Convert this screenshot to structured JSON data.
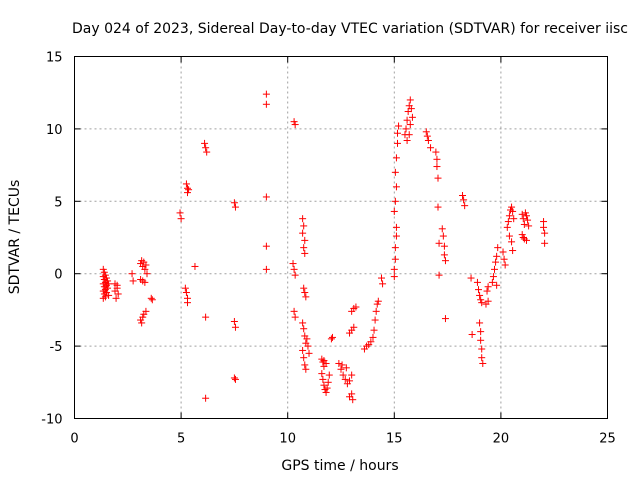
{
  "chart_data": {
    "type": "scatter",
    "title": "Day 024 of 2023, Sidereal Day-to-day VTEC variation (SDTVAR) for receiver iisc",
    "xlabel": "GPS time / hours",
    "ylabel": "SDTVAR / TECUs",
    "xlim": [
      0,
      25
    ],
    "ylim": [
      -10,
      15
    ],
    "xticks": [
      "0",
      "5",
      "10",
      "15",
      "20",
      "25"
    ],
    "yticks": [
      "-10",
      "-5",
      "0",
      "5",
      "10",
      "15"
    ],
    "grid": true,
    "marker": "plus",
    "color": "#ff0000",
    "series": [
      {
        "name": "SDTVAR",
        "points": [
          [
            1.35,
            0.3
          ],
          [
            1.35,
            -0.2
          ],
          [
            1.35,
            -0.7
          ],
          [
            1.35,
            -1.2
          ],
          [
            1.35,
            -1.7
          ],
          [
            1.4,
            0.1
          ],
          [
            1.4,
            -0.4
          ],
          [
            1.4,
            -0.9
          ],
          [
            1.4,
            -1.4
          ],
          [
            1.45,
            -0.1
          ],
          [
            1.45,
            -0.6
          ],
          [
            1.45,
            -1.1
          ],
          [
            1.45,
            -1.6
          ],
          [
            1.5,
            -0.3
          ],
          [
            1.5,
            -0.8
          ],
          [
            1.5,
            -1.3
          ],
          [
            1.55,
            -0.5
          ],
          [
            1.55,
            -1.0
          ],
          [
            1.6,
            -0.7
          ],
          [
            1.6,
            -1.5
          ],
          [
            1.9,
            -0.7
          ],
          [
            1.9,
            -1.2
          ],
          [
            1.95,
            -1.7
          ],
          [
            2.0,
            -1.0
          ],
          [
            2.0,
            -0.8
          ],
          [
            2.05,
            -1.4
          ],
          [
            2.7,
            0.0
          ],
          [
            2.75,
            -0.5
          ],
          [
            3.1,
            0.7
          ],
          [
            3.15,
            0.9
          ],
          [
            3.2,
            0.5
          ],
          [
            3.25,
            0.8
          ],
          [
            3.3,
            0.3
          ],
          [
            3.35,
            0.6
          ],
          [
            3.4,
            0.0
          ],
          [
            3.1,
            -0.4
          ],
          [
            3.2,
            -0.5
          ],
          [
            3.3,
            -0.6
          ],
          [
            3.1,
            -3.2
          ],
          [
            3.15,
            -3.4
          ],
          [
            3.2,
            -3.0
          ],
          [
            3.25,
            -2.8
          ],
          [
            3.35,
            -2.6
          ],
          [
            3.6,
            -1.7
          ],
          [
            3.65,
            -1.8
          ],
          [
            4.95,
            4.2
          ],
          [
            5.0,
            3.8
          ],
          [
            5.25,
            6.2
          ],
          [
            5.3,
            5.9
          ],
          [
            5.3,
            5.6
          ],
          [
            5.35,
            5.8
          ],
          [
            5.2,
            -1.0
          ],
          [
            5.25,
            -1.3
          ],
          [
            5.3,
            -1.7
          ],
          [
            5.3,
            -2.0
          ],
          [
            5.65,
            0.5
          ],
          [
            6.1,
            9.0
          ],
          [
            6.15,
            8.7
          ],
          [
            6.2,
            8.4
          ],
          [
            6.15,
            -3.0
          ],
          [
            6.15,
            -8.6
          ],
          [
            7.5,
            4.9
          ],
          [
            7.55,
            4.6
          ],
          [
            7.5,
            -3.3
          ],
          [
            7.55,
            -3.7
          ],
          [
            7.5,
            -7.2
          ],
          [
            7.55,
            -7.3
          ],
          [
            9.0,
            12.4
          ],
          [
            9.0,
            11.7
          ],
          [
            9.0,
            5.3
          ],
          [
            9.0,
            1.9
          ],
          [
            9.0,
            0.3
          ],
          [
            10.3,
            10.5
          ],
          [
            10.35,
            10.3
          ],
          [
            10.25,
            0.7
          ],
          [
            10.3,
            0.3
          ],
          [
            10.35,
            -0.1
          ],
          [
            10.3,
            -2.6
          ],
          [
            10.35,
            -3.0
          ],
          [
            10.7,
            3.8
          ],
          [
            10.75,
            3.3
          ],
          [
            10.7,
            2.8
          ],
          [
            10.8,
            2.3
          ],
          [
            10.75,
            1.8
          ],
          [
            10.8,
            1.4
          ],
          [
            10.75,
            -1.0
          ],
          [
            10.8,
            -1.3
          ],
          [
            10.85,
            -1.6
          ],
          [
            10.7,
            -3.4
          ],
          [
            10.75,
            -3.8
          ],
          [
            10.8,
            -4.3
          ],
          [
            10.85,
            -4.8
          ],
          [
            10.7,
            -5.3
          ],
          [
            10.75,
            -5.8
          ],
          [
            10.8,
            -6.3
          ],
          [
            10.85,
            -6.6
          ],
          [
            10.9,
            -4.5
          ],
          [
            10.95,
            -5.0
          ],
          [
            11.0,
            -5.5
          ],
          [
            11.6,
            -5.9
          ],
          [
            11.65,
            -6.1
          ],
          [
            11.7,
            -6.4
          ],
          [
            11.6,
            -6.9
          ],
          [
            11.65,
            -7.3
          ],
          [
            11.7,
            -7.7
          ],
          [
            11.75,
            -8.0
          ],
          [
            11.8,
            -8.2
          ],
          [
            11.85,
            -7.9
          ],
          [
            11.9,
            -7.5
          ],
          [
            11.95,
            -7.0
          ],
          [
            11.7,
            -6.0
          ],
          [
            11.8,
            -6.2
          ],
          [
            12.05,
            -4.5
          ],
          [
            12.1,
            -4.4
          ],
          [
            12.4,
            -6.2
          ],
          [
            12.5,
            -6.6
          ],
          [
            12.6,
            -7.0
          ],
          [
            12.7,
            -7.3
          ],
          [
            12.8,
            -7.6
          ],
          [
            12.9,
            -7.4
          ],
          [
            13.0,
            -7.0
          ],
          [
            12.55,
            -6.3
          ],
          [
            12.75,
            -6.5
          ],
          [
            12.9,
            -8.5
          ],
          [
            13.0,
            -8.3
          ],
          [
            13.05,
            -8.7
          ],
          [
            12.9,
            -4.1
          ],
          [
            13.0,
            -3.9
          ],
          [
            13.1,
            -3.7
          ],
          [
            13.0,
            -2.6
          ],
          [
            13.1,
            -2.4
          ],
          [
            13.2,
            -2.3
          ],
          [
            13.6,
            -5.2
          ],
          [
            13.7,
            -5.0
          ],
          [
            13.8,
            -4.9
          ],
          [
            13.9,
            -4.7
          ],
          [
            14.0,
            -4.4
          ],
          [
            14.05,
            -3.9
          ],
          [
            14.1,
            -3.2
          ],
          [
            14.15,
            -2.6
          ],
          [
            14.2,
            -2.1
          ],
          [
            14.25,
            -1.9
          ],
          [
            14.4,
            -0.3
          ],
          [
            14.45,
            -0.7
          ],
          [
            15.0,
            -0.2
          ],
          [
            15.0,
            0.3
          ],
          [
            15.05,
            1.0
          ],
          [
            15.05,
            1.8
          ],
          [
            15.1,
            2.6
          ],
          [
            15.1,
            3.2
          ],
          [
            15.0,
            4.3
          ],
          [
            15.05,
            5.0
          ],
          [
            15.1,
            6.0
          ],
          [
            15.05,
            7.0
          ],
          [
            15.1,
            8.0
          ],
          [
            15.15,
            9.0
          ],
          [
            15.15,
            9.7
          ],
          [
            15.2,
            10.2
          ],
          [
            15.5,
            9.6
          ],
          [
            15.55,
            10.0
          ],
          [
            15.6,
            10.6
          ],
          [
            15.65,
            11.2
          ],
          [
            15.7,
            11.6
          ],
          [
            15.75,
            12.0
          ],
          [
            15.8,
            11.4
          ],
          [
            15.85,
            10.8
          ],
          [
            15.6,
            9.2
          ],
          [
            15.7,
            9.6
          ],
          [
            15.75,
            10.3
          ],
          [
            16.5,
            9.8
          ],
          [
            16.55,
            9.5
          ],
          [
            16.6,
            9.2
          ],
          [
            16.7,
            8.7
          ],
          [
            16.95,
            8.4
          ],
          [
            17.0,
            7.9
          ],
          [
            17.0,
            7.4
          ],
          [
            17.05,
            6.6
          ],
          [
            17.05,
            4.6
          ],
          [
            17.1,
            2.1
          ],
          [
            17.1,
            -0.1
          ],
          [
            17.25,
            3.1
          ],
          [
            17.3,
            2.6
          ],
          [
            17.35,
            1.9
          ],
          [
            17.35,
            1.3
          ],
          [
            17.4,
            0.9
          ],
          [
            17.4,
            -3.1
          ],
          [
            18.2,
            5.4
          ],
          [
            18.25,
            5.1
          ],
          [
            18.3,
            4.7
          ],
          [
            18.6,
            -0.3
          ],
          [
            18.65,
            -4.2
          ],
          [
            18.9,
            -0.6
          ],
          [
            18.95,
            -1.1
          ],
          [
            19.0,
            -1.5
          ],
          [
            19.05,
            -1.8
          ],
          [
            19.1,
            -2.0
          ],
          [
            19.0,
            -3.4
          ],
          [
            19.05,
            -4.0
          ],
          [
            19.05,
            -4.6
          ],
          [
            19.1,
            -5.2
          ],
          [
            19.1,
            -5.8
          ],
          [
            19.15,
            -6.2
          ],
          [
            19.3,
            -2.1
          ],
          [
            19.4,
            -1.9
          ],
          [
            19.35,
            -1.2
          ],
          [
            19.4,
            -0.9
          ],
          [
            19.6,
            -0.6
          ],
          [
            19.65,
            -0.2
          ],
          [
            19.7,
            0.3
          ],
          [
            19.75,
            0.8
          ],
          [
            19.8,
            1.2
          ],
          [
            19.85,
            1.8
          ],
          [
            19.8,
            -0.8
          ],
          [
            20.1,
            1.5
          ],
          [
            20.15,
            1.0
          ],
          [
            20.2,
            0.6
          ],
          [
            20.3,
            3.2
          ],
          [
            20.35,
            3.6
          ],
          [
            20.4,
            4.0
          ],
          [
            20.45,
            4.4
          ],
          [
            20.5,
            4.6
          ],
          [
            20.55,
            4.3
          ],
          [
            20.6,
            3.8
          ],
          [
            20.4,
            2.6
          ],
          [
            20.5,
            2.2
          ],
          [
            20.55,
            1.6
          ],
          [
            21.0,
            4.1
          ],
          [
            21.05,
            3.8
          ],
          [
            21.1,
            3.4
          ],
          [
            21.15,
            4.2
          ],
          [
            21.2,
            4.0
          ],
          [
            21.25,
            3.7
          ],
          [
            21.3,
            3.3
          ],
          [
            21.0,
            2.7
          ],
          [
            21.05,
            2.5
          ],
          [
            21.1,
            2.4
          ],
          [
            21.2,
            2.3
          ],
          [
            22.0,
            3.6
          ],
          [
            22.0,
            3.2
          ],
          [
            22.05,
            2.8
          ],
          [
            22.05,
            2.1
          ]
        ]
      }
    ]
  }
}
